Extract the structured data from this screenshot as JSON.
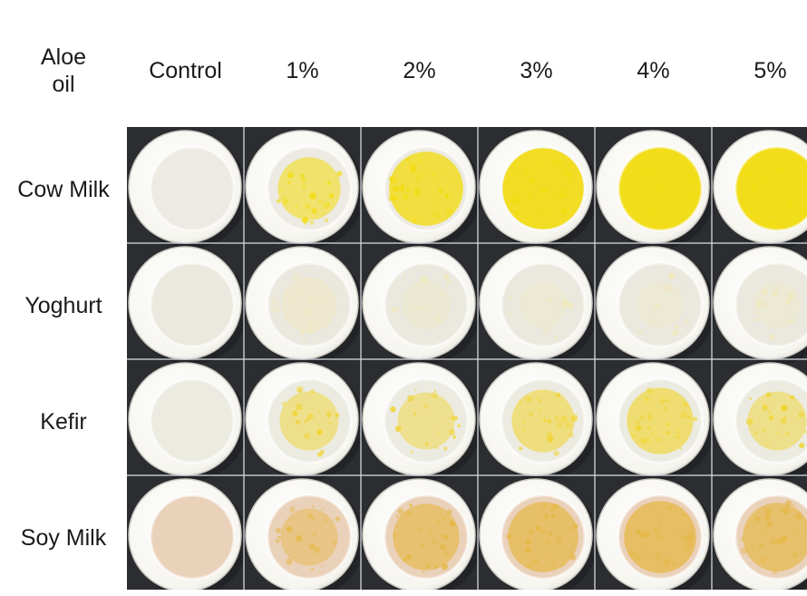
{
  "header": {
    "corner_line1": "Aloe",
    "corner_line2": "oil",
    "columns": [
      "Control",
      "1%",
      "2%",
      "3%",
      "4%",
      "5%"
    ]
  },
  "rows": [
    {
      "label": "Cow Milk",
      "base": "#eceae2",
      "oil": "#f2dc10",
      "levels": [
        0,
        0.45,
        0.75,
        0.95,
        1.0,
        1.0
      ]
    },
    {
      "label": "Yoghurt",
      "base": "#ebe9df",
      "oil": "#f0e8b8",
      "levels": [
        0,
        0.25,
        0.08,
        0.05,
        0.03,
        0.03
      ]
    },
    {
      "label": "Kefir",
      "base": "#ecebe2",
      "oil": "#f1d430",
      "levels": [
        0,
        0.35,
        0.3,
        0.45,
        0.55,
        0.35
      ]
    },
    {
      "label": "Soy Milk",
      "base": "#ead1ba",
      "oil": "#e5b846",
      "levels": [
        0,
        0.3,
        0.55,
        0.65,
        0.7,
        0.6
      ]
    }
  ],
  "colors": {
    "tray": "#2b2d31",
    "cup": "#f6f5f0",
    "grid": "#d8dcdf"
  }
}
